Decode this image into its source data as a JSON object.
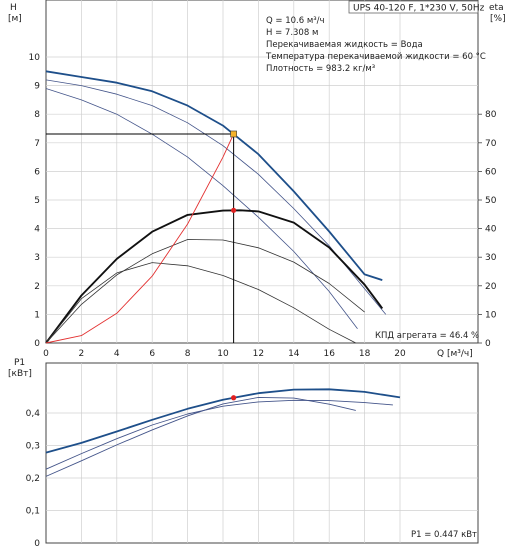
{
  "chart_data": [
    {
      "type": "line",
      "title": "UPS 40-120 F, 1*230 V, 50Hz",
      "xlabel": "Q [м³/ч]",
      "ylabel": "H [м]",
      "ylabel_line1": "H",
      "ylabel_line2": "[м]",
      "y2label_line1": "eta",
      "y2label_line2": "[%]",
      "xlim": [
        0,
        21.5
      ],
      "ylim": [
        0,
        10.5
      ],
      "y2lim": [
        0,
        100
      ],
      "xticks": [
        0,
        2,
        4,
        6,
        8,
        10,
        12,
        14,
        16,
        18,
        20
      ],
      "yticks": [
        0,
        1,
        2,
        3,
        4,
        5,
        6,
        7,
        8,
        9,
        10
      ],
      "y2ticks": [
        0,
        10,
        20,
        30,
        40,
        50,
        60,
        70,
        80
      ],
      "grid": true,
      "info_lines": [
        "Q = 10.6 м³/ч",
        "H = 7.308 м",
        "Перекачиваемая жидкость = Вода",
        "Температура перекачиваемой жидкости = 60 °C",
        "Плотность = 983.2 кг/м³"
      ],
      "efficiency_label": "КПД агрегата = 46.4 %",
      "operating_point": {
        "q": 10.6,
        "h": 7.308,
        "eta": 46.4
      },
      "series": [
        {
          "role": "head-max",
          "color": "#1e4f8a",
          "x": [
            0,
            2,
            4,
            6,
            8,
            10,
            12,
            14,
            16,
            18,
            19
          ],
          "y": [
            9.5,
            9.3,
            9.1,
            8.8,
            8.3,
            7.6,
            6.6,
            5.3,
            3.9,
            2.4,
            2.2
          ]
        },
        {
          "role": "head-curve-2",
          "color": "#44558a",
          "x": [
            0,
            2,
            4,
            6,
            8,
            10,
            12,
            14,
            16,
            18,
            19.2
          ],
          "y": [
            9.2,
            9.0,
            8.7,
            8.3,
            7.7,
            6.9,
            5.9,
            4.7,
            3.4,
            1.9,
            1.0
          ]
        },
        {
          "role": "head-curve-3",
          "color": "#44558a",
          "x": [
            0,
            2,
            4,
            6,
            8,
            10,
            12,
            14,
            16,
            17.6
          ],
          "y": [
            8.9,
            8.5,
            8.0,
            7.3,
            6.5,
            5.5,
            4.4,
            3.2,
            1.8,
            0.5
          ]
        },
        {
          "role": "eta-max",
          "color": "#111111",
          "unit": "%",
          "x": [
            0,
            2,
            4,
            6,
            8,
            10,
            11,
            12,
            14,
            16,
            18,
            19
          ],
          "y": [
            0,
            16.6,
            29.4,
            38.9,
            44.8,
            46.3,
            46.4,
            46.0,
            42.1,
            33.4,
            20.4,
            12.1
          ]
        },
        {
          "role": "eta-curve-2",
          "color": "#333333",
          "unit": "%",
          "x": [
            0,
            2,
            4,
            6,
            8,
            10,
            12,
            14,
            16,
            18
          ],
          "y": [
            0,
            13.5,
            23.8,
            31.2,
            36.2,
            36.0,
            33.3,
            28.3,
            20.8,
            10.8
          ]
        },
        {
          "role": "eta-curve-3",
          "color": "#333333",
          "unit": "%",
          "x": [
            0,
            2,
            4,
            6,
            8,
            10,
            12,
            14,
            16,
            17.5
          ],
          "y": [
            0,
            15.5,
            24.5,
            28.1,
            27.0,
            23.6,
            18.7,
            12.3,
            4.8,
            0
          ]
        },
        {
          "role": "system-curve",
          "color": "#e33131",
          "x": [
            0,
            2,
            4,
            6,
            8,
            10,
            10.6
          ],
          "y": [
            0,
            0.26,
            1.04,
            2.34,
            4.16,
            6.5,
            7.308
          ]
        }
      ]
    },
    {
      "type": "line",
      "ylabel_line1": "P1",
      "ylabel_line2": "[кВт]",
      "xlim": [
        0,
        21.5
      ],
      "ylim": [
        0,
        0.5
      ],
      "yticks": [
        0,
        0.1,
        0.2,
        0.3,
        0.4
      ],
      "ytick_labels": [
        "0",
        "0,1",
        "0,2",
        "0,3",
        "0,4"
      ],
      "grid": true,
      "power_label": "P1 = 0.447 кВт",
      "operating_point": {
        "q": 10.6,
        "p1": 0.447
      },
      "series": [
        {
          "role": "p1-max",
          "color": "#1e4f8a",
          "x": [
            0,
            2,
            4,
            6,
            8,
            10,
            12,
            14,
            16,
            18,
            20
          ],
          "y": [
            0.278,
            0.308,
            0.343,
            0.379,
            0.413,
            0.441,
            0.461,
            0.472,
            0.473,
            0.465,
            0.448
          ]
        },
        {
          "role": "p1-curve-2",
          "color": "#44558a",
          "x": [
            0,
            2,
            4,
            6,
            8,
            10,
            12,
            14,
            16,
            18,
            19.6
          ],
          "y": [
            0.227,
            0.275,
            0.321,
            0.363,
            0.397,
            0.421,
            0.434,
            0.439,
            0.438,
            0.432,
            0.425
          ]
        },
        {
          "role": "p1-curve-3",
          "color": "#44558a",
          "x": [
            0,
            2,
            4,
            6,
            8,
            10,
            12,
            14,
            16,
            17.5
          ],
          "y": [
            0.205,
            0.253,
            0.302,
            0.348,
            0.391,
            0.428,
            0.448,
            0.446,
            0.427,
            0.408
          ]
        }
      ]
    }
  ]
}
